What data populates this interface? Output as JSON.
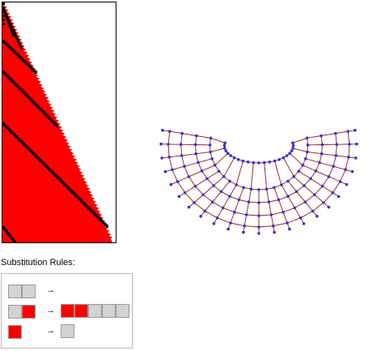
{
  "colors": {
    "state_red": "#ff0000",
    "state_gray": "#d3d3d3",
    "cell_border": "#9a9a9a",
    "edge": "#8b1a1a",
    "vertex": "#3a2fd0",
    "marker": "#000000"
  },
  "evolution_plot": {
    "icon": "causal-evolution-triangle"
  },
  "graph": {
    "icon": "spatial-network-graph"
  },
  "rules": {
    "title": "Substitution Rules:",
    "arrow": "→",
    "items": [
      {
        "lhs": [
          "gray",
          "gray"
        ],
        "rhs": []
      },
      {
        "lhs": [
          "gray",
          "red"
        ],
        "rhs": [
          "red",
          "red",
          "gray",
          "gray",
          "gray"
        ]
      },
      {
        "lhs": [
          "red"
        ],
        "rhs": [
          "gray"
        ]
      }
    ]
  }
}
